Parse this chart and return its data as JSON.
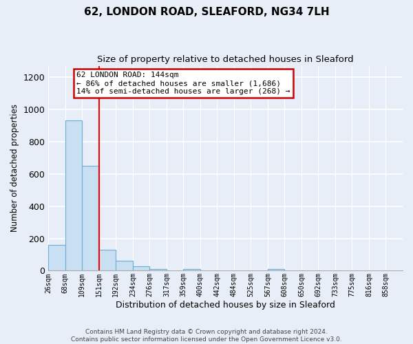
{
  "title": "62, LONDON ROAD, SLEAFORD, NG34 7LH",
  "subtitle": "Size of property relative to detached houses in Sleaford",
  "xlabel": "Distribution of detached houses by size in Sleaford",
  "ylabel": "Number of detached properties",
  "bar_values": [
    160,
    930,
    650,
    130,
    60,
    28,
    12,
    0,
    12,
    0,
    0,
    0,
    0,
    12,
    0,
    0,
    0,
    0,
    0,
    0,
    0
  ],
  "bin_labels": [
    "26sqm",
    "68sqm",
    "109sqm",
    "151sqm",
    "192sqm",
    "234sqm",
    "276sqm",
    "317sqm",
    "359sqm",
    "400sqm",
    "442sqm",
    "484sqm",
    "525sqm",
    "567sqm",
    "608sqm",
    "650sqm",
    "692sqm",
    "733sqm",
    "775sqm",
    "816sqm",
    "858sqm"
  ],
  "bar_color": "#c9dff2",
  "bar_edge_color": "#6aaed6",
  "vline_color": "red",
  "vline_position": 3,
  "ylim": [
    0,
    1270
  ],
  "yticks": [
    0,
    200,
    400,
    600,
    800,
    1000,
    1200
  ],
  "annotation_title": "62 LONDON ROAD: 144sqm",
  "annotation_line1": "← 86% of detached houses are smaller (1,686)",
  "annotation_line2": "14% of semi-detached houses are larger (268) →",
  "annotation_box_color": "white",
  "annotation_box_edge": "#cc0000",
  "footer1": "Contains HM Land Registry data © Crown copyright and database right 2024.",
  "footer2": "Contains public sector information licensed under the Open Government Licence v3.0.",
  "background_color": "#e8eef8",
  "axes_background": "#e8eef8",
  "grid_color": "white"
}
